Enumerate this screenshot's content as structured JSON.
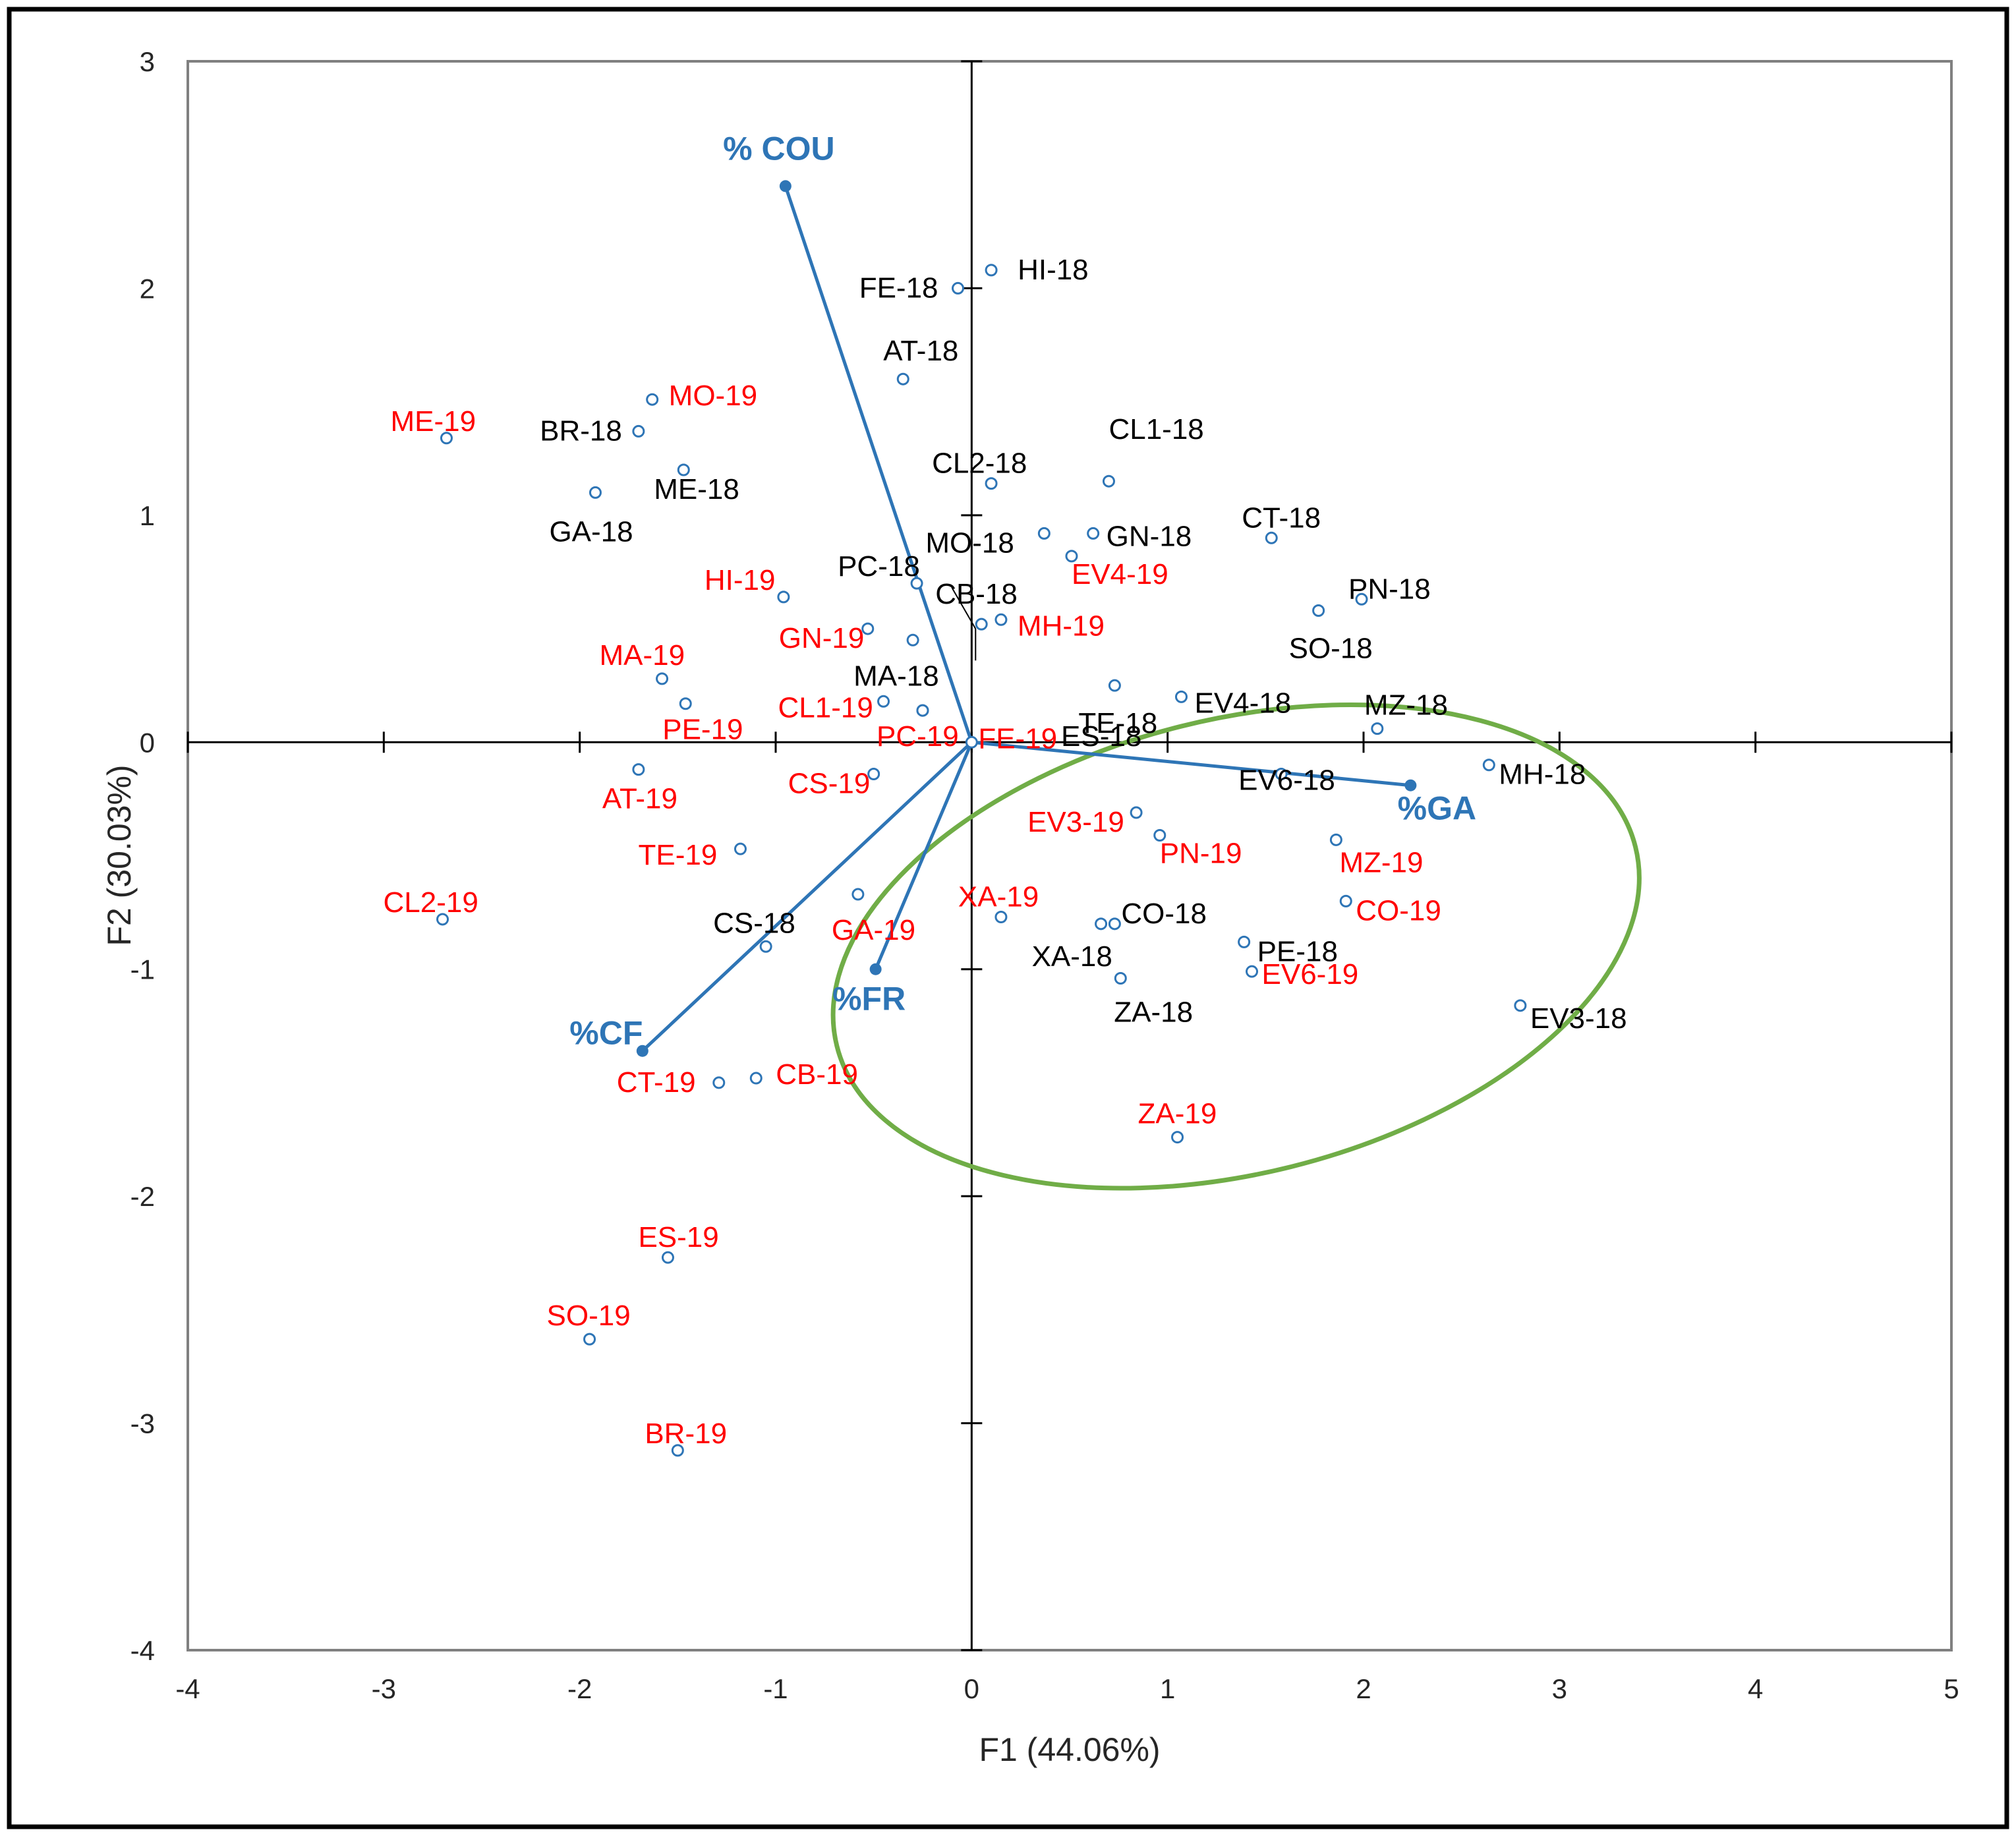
{
  "chart_data": {
    "type": "scatter",
    "xlabel": "F1 (44.06%)",
    "ylabel": "F2 (30.03%)",
    "xlim": [
      -4,
      5
    ],
    "ylim": [
      -4,
      3
    ],
    "xticks": [
      "-4",
      "-3",
      "-2",
      "-1",
      "0",
      "1",
      "2",
      "3",
      "4",
      "5"
    ],
    "yticks": [
      "3",
      "2",
      "1",
      "0",
      "-1",
      "-2",
      "-3",
      "-4"
    ],
    "colors": {
      "year2018": "#000000",
      "year2019": "#ff0000",
      "vectors": "#2e75b6",
      "marker": "#2e75b6",
      "ellipse": "#70ad47",
      "frame": "#000000",
      "plot_border": "#808080"
    },
    "series": [
      {
        "name": "2018",
        "color": "#000000",
        "points": [
          {
            "label": "FE-18",
            "x": -0.07,
            "y": 2.0
          },
          {
            "label": "HI-18",
            "x": 0.1,
            "y": 2.08
          },
          {
            "label": "AT-18",
            "x": -0.35,
            "y": 1.6
          },
          {
            "label": "BR-18",
            "x": -1.7,
            "y": 1.37
          },
          {
            "label": "ME-18",
            "x": -1.47,
            "y": 1.2
          },
          {
            "label": "GA-18",
            "x": -1.92,
            "y": 1.1
          },
          {
            "label": "CL1-18",
            "x": 0.7,
            "y": 1.15
          },
          {
            "label": "CL2-18",
            "x": 0.1,
            "y": 1.14
          },
          {
            "label": "MO-18",
            "x": 0.37,
            "y": 0.92
          },
          {
            "label": "GN-18",
            "x": 0.62,
            "y": 0.92
          },
          {
            "label": "CT-18",
            "x": 1.53,
            "y": 0.9
          },
          {
            "label": "PC-18",
            "x": -0.28,
            "y": 0.7
          },
          {
            "label": "CB-18",
            "x": 0.05,
            "y": 0.52
          },
          {
            "label": "PN-18",
            "x": 1.99,
            "y": 0.63
          },
          {
            "label": "SO-18",
            "x": 1.77,
            "y": 0.58
          },
          {
            "label": "MA-18",
            "x": -0.3,
            "y": 0.45
          },
          {
            "label": "ES-18",
            "x": -0.25,
            "y": 0.14
          },
          {
            "label": "TE-18",
            "x": 0.73,
            "y": 0.25
          },
          {
            "label": "EV4-18",
            "x": 1.07,
            "y": 0.2
          },
          {
            "label": "MZ-18",
            "x": 2.07,
            "y": 0.06
          },
          {
            "label": "EV6-18",
            "x": 1.58,
            "y": -0.14
          },
          {
            "label": "MH-18",
            "x": 2.64,
            "y": -0.1
          },
          {
            "label": "CS-18",
            "x": -1.05,
            "y": -0.9
          },
          {
            "label": "CO-18",
            "x": 0.73,
            "y": -0.8
          },
          {
            "label": "XA-18",
            "x": 0.66,
            "y": -0.8
          },
          {
            "label": "PE-18",
            "x": 1.39,
            "y": -0.88
          },
          {
            "label": "ZA-18",
            "x": 0.76,
            "y": -1.04
          },
          {
            "label": "EV3-18",
            "x": 2.8,
            "y": -1.16
          }
        ]
      },
      {
        "name": "2019",
        "color": "#ff0000",
        "points": [
          {
            "label": "ME-19",
            "x": -2.68,
            "y": 1.34
          },
          {
            "label": "MO-19",
            "x": -1.63,
            "y": 1.51
          },
          {
            "label": "HI-19",
            "x": -0.96,
            "y": 0.64
          },
          {
            "label": "GN-19",
            "x": -0.53,
            "y": 0.5
          },
          {
            "label": "MA-19",
            "x": -1.58,
            "y": 0.28
          },
          {
            "label": "PE-19",
            "x": -1.46,
            "y": 0.17
          },
          {
            "label": "CL1-19",
            "x": -0.45,
            "y": 0.18
          },
          {
            "label": "PC-19",
            "x": -0.25,
            "y": 0.14
          },
          {
            "label": "FE-19",
            "x": 0.0,
            "y": 0.0
          },
          {
            "label": "EV4-19",
            "x": 0.51,
            "y": 0.82
          },
          {
            "label": "MH-19",
            "x": 0.15,
            "y": 0.54
          },
          {
            "label": "AT-19",
            "x": -1.7,
            "y": -0.12
          },
          {
            "label": "CS-19",
            "x": -0.5,
            "y": -0.14
          },
          {
            "label": "TE-19",
            "x": -1.18,
            "y": -0.47
          },
          {
            "label": "CL2-19",
            "x": -2.7,
            "y": -0.78
          },
          {
            "label": "GA-19",
            "x": -0.58,
            "y": -0.67
          },
          {
            "label": "EV3-19",
            "x": 0.84,
            "y": -0.31
          },
          {
            "label": "PN-19",
            "x": 0.96,
            "y": -0.41
          },
          {
            "label": "MZ-19",
            "x": 1.86,
            "y": -0.43
          },
          {
            "label": "XA-19",
            "x": 0.15,
            "y": -0.77
          },
          {
            "label": "CO-19",
            "x": 1.91,
            "y": -0.7
          },
          {
            "label": "EV6-19",
            "x": 1.43,
            "y": -1.01
          },
          {
            "label": "CT-19",
            "x": -1.29,
            "y": -1.5
          },
          {
            "label": "CB-19",
            "x": -1.1,
            "y": -1.48
          },
          {
            "label": "ZA-19",
            "x": 1.05,
            "y": -1.74
          },
          {
            "label": "ES-19",
            "x": -1.55,
            "y": -2.27
          },
          {
            "label": "SO-19",
            "x": -1.95,
            "y": -2.63
          },
          {
            "label": "BR-19",
            "x": -1.5,
            "y": -3.12
          }
        ]
      }
    ],
    "vectors": [
      {
        "label": "% COU",
        "x": -0.95,
        "y": 2.45
      },
      {
        "label": "%GA",
        "x": 2.24,
        "y": -0.19
      },
      {
        "label": "%CF",
        "x": -1.68,
        "y": -1.36
      },
      {
        "label": "%FR",
        "x": -0.49,
        "y": -1.0
      }
    ],
    "ellipse": {
      "cx": 1.35,
      "cy": -0.9,
      "rx": 2.1,
      "ry": 1.0,
      "angle_deg": -14
    }
  }
}
